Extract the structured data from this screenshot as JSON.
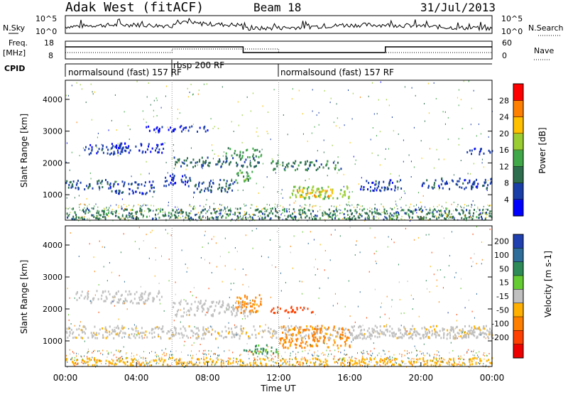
{
  "header": {
    "title": "Adak West (fitACF)",
    "beam": "Beam 18",
    "date": "31/Jul/2013"
  },
  "panels": {
    "nsky": {
      "label": "N.Sky",
      "tick_top": "10^5",
      "tick_bottom": "10^0",
      "right_tick_top": "10^5",
      "right_tick_bottom": "10^0",
      "right_label": "N.Search"
    },
    "freq": {
      "label": "Freq.",
      "unit": "[MHz]",
      "tick_top": "18",
      "tick_bottom": "8",
      "right_tick_top": "60",
      "right_tick_bottom": "0",
      "right_label": "Nave"
    },
    "cpid": {
      "label": "CPID",
      "segments": [
        {
          "label": "normalsound (fast) 157 RF",
          "start_h": 0,
          "end_h": 6
        },
        {
          "label": "rbsp 200 RF",
          "start_h": 6,
          "end_h": 12
        },
        {
          "label": "normalsound (fast) 157 RF",
          "start_h": 12,
          "end_h": 24
        }
      ],
      "overlap_label": "157 RF"
    }
  },
  "chart_data": [
    {
      "type": "heatmap",
      "name": "Power",
      "ylabel": "Slant Range [km]",
      "ylim": [
        200,
        4600
      ],
      "yticks": [
        "1000",
        "2000",
        "3000",
        "4000"
      ],
      "yticks_val": [
        1000,
        2000,
        3000,
        4000
      ],
      "colorbar": {
        "label": "Power [dB]",
        "range": [
          0,
          32
        ],
        "ticks": [
          "4",
          "8",
          "12",
          "16",
          "20",
          "24",
          "28"
        ],
        "ticks_val": [
          4,
          8,
          12,
          16,
          20,
          24,
          28
        ],
        "colors": [
          "#0000ff",
          "#1a3ea8",
          "#2e6e4e",
          "#41a84a",
          "#9acd32",
          "#ffc000",
          "#ff8000",
          "#ff0000"
        ]
      },
      "regions": [
        {
          "t": [
            1.0,
            3.5
          ],
          "r": [
            2300,
            2600
          ],
          "level": 6
        },
        {
          "t": [
            2.5,
            5.5
          ],
          "r": [
            2350,
            2650
          ],
          "level": 4
        },
        {
          "t": [
            0.0,
            2.5
          ],
          "r": [
            1200,
            1500
          ],
          "level": 7
        },
        {
          "t": [
            2.5,
            5.0
          ],
          "r": [
            1050,
            1450
          ],
          "level": 6
        },
        {
          "t": [
            5.5,
            7.0
          ],
          "r": [
            1300,
            1700
          ],
          "level": 5
        },
        {
          "t": [
            6.0,
            11.0
          ],
          "r": [
            1900,
            2200
          ],
          "level": 9
        },
        {
          "t": [
            7.0,
            9.5
          ],
          "r": [
            1100,
            1500
          ],
          "level": 8
        },
        {
          "t": [
            9.0,
            11.0
          ],
          "r": [
            2200,
            2500
          ],
          "level": 13
        },
        {
          "t": [
            9.5,
            10.5
          ],
          "r": [
            1400,
            1800
          ],
          "level": 14
        },
        {
          "t": [
            11.5,
            15.5
          ],
          "r": [
            1800,
            2100
          ],
          "level": 10
        },
        {
          "t": [
            12.5,
            16.0
          ],
          "r": [
            900,
            1300
          ],
          "level": 17
        },
        {
          "t": [
            13.0,
            15.0
          ],
          "r": [
            950,
            1200
          ],
          "level": 23
        },
        {
          "t": [
            16.5,
            19.0
          ],
          "r": [
            1150,
            1500
          ],
          "level": 6
        },
        {
          "t": [
            20.0,
            24.0
          ],
          "r": [
            1200,
            1550
          ],
          "level": 6
        },
        {
          "t": [
            0.0,
            24.0
          ],
          "r": [
            250,
            600
          ],
          "level": 10
        },
        {
          "t": [
            4.5,
            8.0
          ],
          "r": [
            3000,
            3200
          ],
          "level": 4
        },
        {
          "t": [
            22.5,
            24.0
          ],
          "r": [
            2300,
            2500
          ],
          "level": 5
        }
      ]
    },
    {
      "type": "heatmap",
      "name": "Velocity",
      "ylabel": "Slant Range [km]",
      "ylim": [
        200,
        4600
      ],
      "yticks": [
        "1000",
        "2000",
        "3000",
        "4000"
      ],
      "yticks_val": [
        1000,
        2000,
        3000,
        4000
      ],
      "colorbar": {
        "label": "Velocity [m s-1]",
        "range": [
          -250,
          250
        ],
        "ticks": [
          "200",
          "100",
          "50",
          "15",
          "-15",
          "-50",
          "-100",
          "-200"
        ],
        "ticks_val": [
          200,
          100,
          50,
          15,
          -15,
          -50,
          -100,
          -200
        ],
        "colors": [
          "#2040b0",
          "#2f6e9a",
          "#2e8b57",
          "#66cc33",
          "#c0c0c0",
          "#ffb000",
          "#ff8000",
          "#ff4000",
          "#ee0000"
        ]
      },
      "regions": [
        {
          "t": [
            0.5,
            5.5
          ],
          "r": [
            2200,
            2600
          ],
          "v": 0
        },
        {
          "t": [
            0.0,
            24.0
          ],
          "r": [
            1100,
            1500
          ],
          "v": -5
        },
        {
          "t": [
            6.0,
            10.5
          ],
          "r": [
            1800,
            2300
          ],
          "v": 0
        },
        {
          "t": [
            9.5,
            11.0
          ],
          "r": [
            1900,
            2500
          ],
          "v": -60
        },
        {
          "t": [
            11.5,
            14.0
          ],
          "r": [
            1900,
            2100
          ],
          "v": -180
        },
        {
          "t": [
            12.0,
            16.0
          ],
          "r": [
            800,
            1500
          ],
          "v": -60
        },
        {
          "t": [
            10.0,
            12.0
          ],
          "r": [
            600,
            900
          ],
          "v": 40
        },
        {
          "t": [
            0.0,
            24.0
          ],
          "r": [
            250,
            500
          ],
          "v": -30
        },
        {
          "t": [
            16.0,
            24.0
          ],
          "r": [
            1100,
            1400
          ],
          "v": 0
        }
      ]
    }
  ],
  "xaxis": {
    "ticks": [
      "00:00",
      "04:00",
      "08:00",
      "12:00",
      "16:00",
      "20:00",
      "00:00"
    ],
    "label": "Time UT",
    "range_h": [
      0,
      24
    ]
  }
}
